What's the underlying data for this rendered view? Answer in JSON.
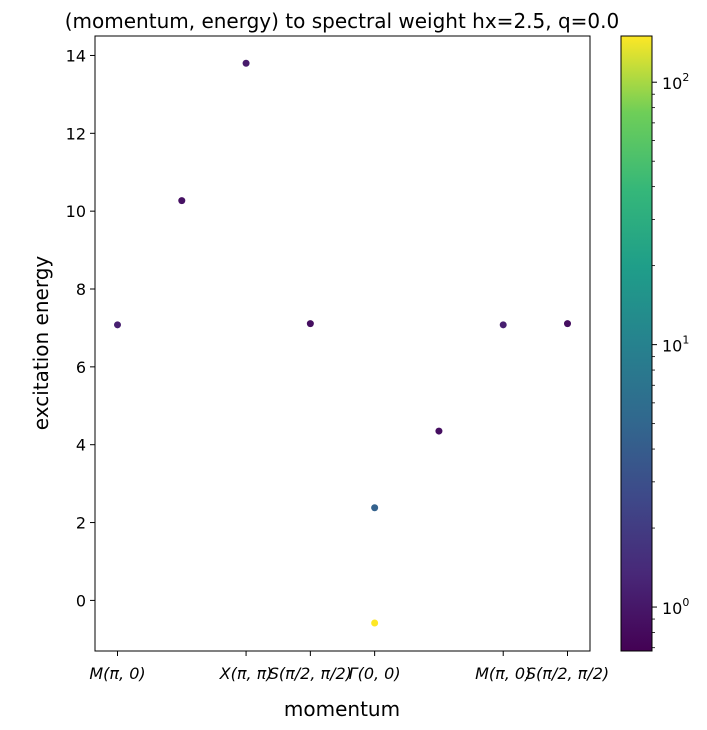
{
  "chart_data": {
    "type": "scatter",
    "title": "(momentum, energy) to spectral weight hx=2.5, q=0.0",
    "xlabel": "momentum",
    "ylabel": "excitation energy",
    "xlim": [
      -0.35,
      7.35
    ],
    "ylim": [
      -1.3,
      14.5
    ],
    "grid": false,
    "yticks": [
      0,
      2,
      4,
      6,
      8,
      10,
      12,
      14
    ],
    "xticks": [
      {
        "x": 0,
        "label": "M(π, 0)"
      },
      {
        "x": 2,
        "label": "X(π, π)"
      },
      {
        "x": 3,
        "label": "S(π/2, π/2)"
      },
      {
        "x": 4,
        "label": "Γ(0, 0)"
      },
      {
        "x": 6,
        "label": "M(π, 0)"
      },
      {
        "x": 7,
        "label": "S(π/2, π/2)"
      }
    ],
    "points": [
      {
        "x": 0,
        "y": 7.08,
        "weight": 1.15
      },
      {
        "x": 1,
        "y": 10.27,
        "weight": 0.9
      },
      {
        "x": 2,
        "y": 13.8,
        "weight": 1.05
      },
      {
        "x": 3,
        "y": 7.11,
        "weight": 0.85
      },
      {
        "x": 4,
        "y": 2.38,
        "weight": 4.5
      },
      {
        "x": 4,
        "y": -0.58,
        "weight": 150
      },
      {
        "x": 5,
        "y": 4.35,
        "weight": 0.85
      },
      {
        "x": 6,
        "y": 7.08,
        "weight": 1.15
      },
      {
        "x": 7,
        "y": 7.11,
        "weight": 0.85
      }
    ],
    "colorbar": {
      "scale": "log",
      "colormap": "viridis",
      "range": [
        0.68,
        150
      ],
      "ticks": [
        {
          "value": 1,
          "base": "10",
          "exp": "0"
        },
        {
          "value": 10,
          "base": "10",
          "exp": "1"
        },
        {
          "value": 100,
          "base": "10",
          "exp": "2"
        }
      ]
    }
  }
}
